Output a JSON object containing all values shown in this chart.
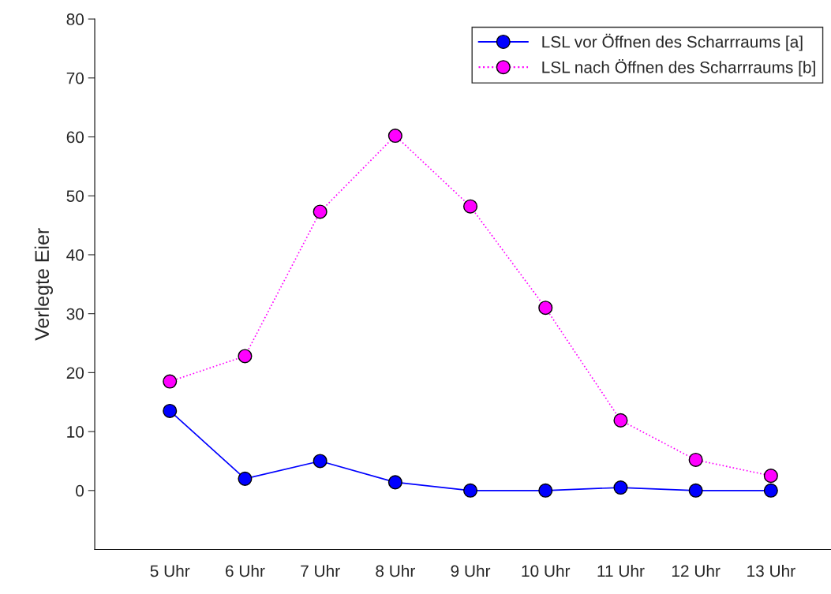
{
  "chart_data": {
    "type": "line",
    "ylabel": "Verlegte Eier",
    "categories": [
      "5 Uhr",
      "6 Uhr",
      "7 Uhr",
      "8 Uhr",
      "9 Uhr",
      "10 Uhr",
      "11 Uhr",
      "12 Uhr",
      "13 Uhr"
    ],
    "series": [
      {
        "name": "LSL vor Öffnen des Scharrraums [a]",
        "color": "#0000ff",
        "line_style": "solid",
        "values": [
          13.5,
          2.0,
          5.0,
          1.4,
          0,
          0,
          0.5,
          0,
          0
        ]
      },
      {
        "name": "LSL nach Öffnen des Scharrraums [b]",
        "color": "#ff00ff",
        "line_style": "dotted",
        "values": [
          18.5,
          22.8,
          47.3,
          60.2,
          48.2,
          31.0,
          11.9,
          5.2,
          2.5
        ]
      }
    ],
    "marker": "circle",
    "ylim": [
      -10,
      80
    ],
    "yticks": [
      0,
      10,
      20,
      30,
      40,
      50,
      60,
      70,
      80
    ],
    "legend": "top right",
    "grid": false
  }
}
